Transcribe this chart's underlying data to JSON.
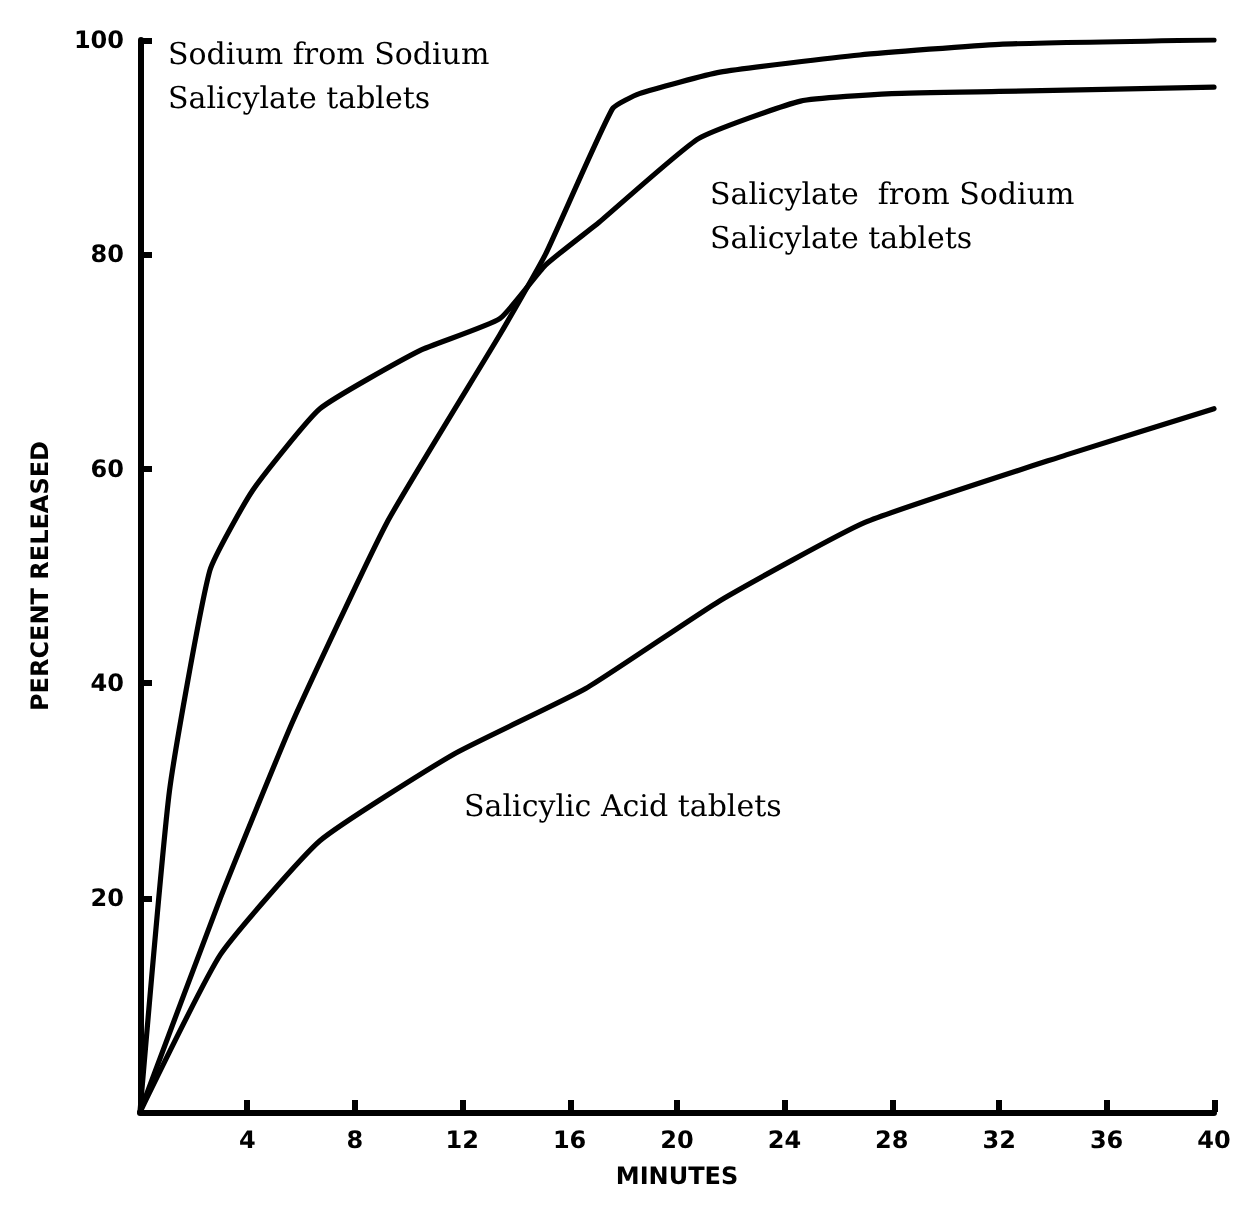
{
  "chart_data": {
    "type": "line",
    "xlabel": "MINUTES",
    "ylabel": "PERCENT RELEASED",
    "xlim": [
      0,
      40
    ],
    "xticks": [
      4,
      8,
      12,
      16,
      20,
      24,
      28,
      32,
      36,
      40
    ],
    "ylim": [
      0,
      100
    ],
    "yticks": [
      20,
      40,
      60,
      80,
      100
    ],
    "grid": false,
    "marker": "none",
    "line_style": "solid",
    "series": [
      {
        "color": "#000000",
        "x": [
          0,
          3,
          5.7,
          9.2,
          13.4,
          15.1,
          17.6,
          18.6,
          21.6,
          26.8,
          32,
          40
        ],
        "values": [
          0,
          20,
          36.5,
          55,
          72.5,
          80,
          93.6,
          95,
          97,
          98.6,
          99.6,
          100
        ]
      },
      {
        "color": "#000000",
        "x": [
          0,
          1.1,
          2.6,
          4.2,
          6.7,
          10.4,
          13.4,
          15.1,
          17.1,
          20.8,
          24.6,
          28,
          32,
          40
        ],
        "values": [
          0,
          30,
          50.5,
          58,
          65.6,
          71,
          74,
          79,
          83,
          90.8,
          94.3,
          95,
          95.2,
          95.6
        ]
      },
      {
        "color": "#000000",
        "x": [
          0,
          3,
          6.7,
          11.7,
          16.6,
          21.6,
          27,
          34.5,
          40
        ],
        "values": [
          0,
          14.7,
          25.3,
          33.4,
          39.5,
          47.7,
          55,
          61.3,
          65.6
        ]
      }
    ],
    "annotations": [
      "Sodium from Sodium\nSalicylate tablets",
      "Salicylate  from Sodium\nSalicylate tablets",
      "Salicylic Acid tablets"
    ]
  }
}
